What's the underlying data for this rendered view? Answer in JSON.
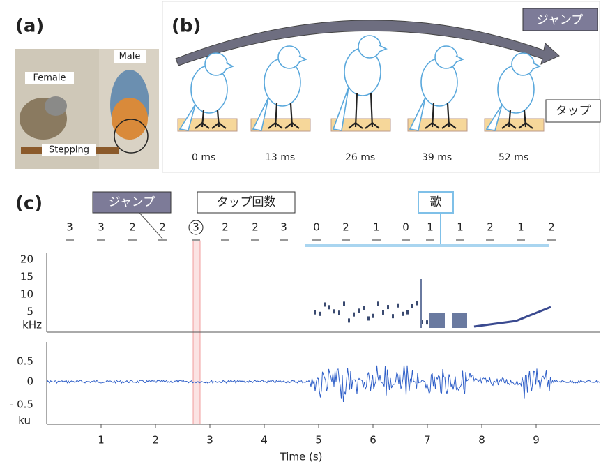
{
  "panels": {
    "a": "(a)",
    "b": "(b)",
    "c": "(c)"
  },
  "photo": {
    "female": "Female",
    "male": "Male",
    "stepping": "Stepping"
  },
  "timeline": {
    "arrow_label": "ジャンプ",
    "tap_label": "タップ",
    "times": [
      "0 ms",
      "13 ms",
      "26 ms",
      "39 ms",
      "52 ms"
    ]
  },
  "recording": {
    "callouts": {
      "jump": "ジャンプ",
      "tap_count": "タップ回数",
      "song": "歌"
    },
    "tap_counts": [
      3,
      3,
      2,
      2,
      3,
      2,
      2,
      3,
      0,
      2,
      1,
      0,
      1,
      1,
      2,
      1,
      2
    ],
    "spectrogram": {
      "yticks": [
        20,
        15,
        10,
        5
      ],
      "unit": "kHz"
    },
    "waveform": {
      "yticks": [
        "0.5",
        "0",
        "- 0.5"
      ],
      "unit": "ku"
    },
    "xticks": [
      1,
      2,
      3,
      4,
      5,
      6,
      7,
      8,
      9
    ],
    "xlabel": "Time (s)"
  }
}
